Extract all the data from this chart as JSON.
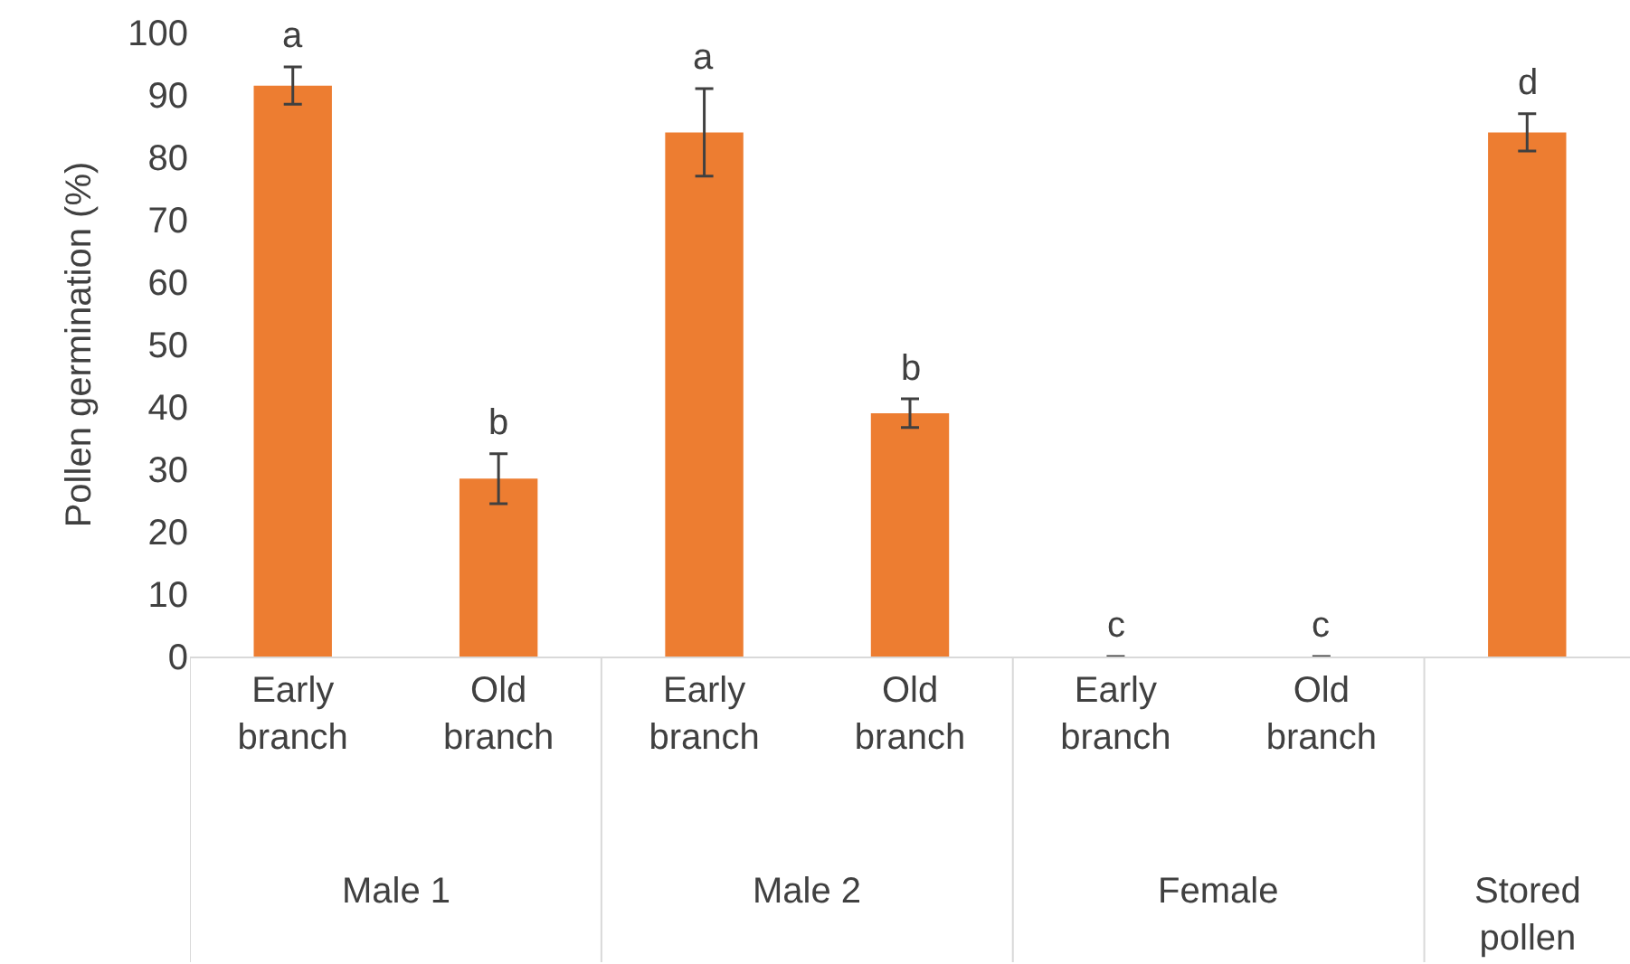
{
  "chart_data": {
    "type": "bar",
    "ylabel": "Pollen germination (%)",
    "categories": [
      "Early branch",
      "Old branch",
      "Early branch",
      "Old branch",
      "Early branch",
      "Old branch",
      null
    ],
    "values": [
      91.5,
      28.5,
      84,
      39,
      0,
      0,
      84
    ],
    "errors": [
      3,
      4,
      7,
      2.3,
      null,
      null,
      3
    ],
    "value_labels": [
      "a",
      "b",
      "a",
      "b",
      "c",
      "c",
      "d"
    ],
    "color": "#ed7d31",
    "annotations": [
      "Male 1",
      "Male 2",
      "Female",
      "Stored pollen"
    ],
    "ylim": [
      0,
      100
    ],
    "yticks": [
      0,
      10,
      20,
      30,
      40,
      50,
      60,
      70,
      80,
      90,
      100
    ],
    "grid": false,
    "legend": false
  }
}
